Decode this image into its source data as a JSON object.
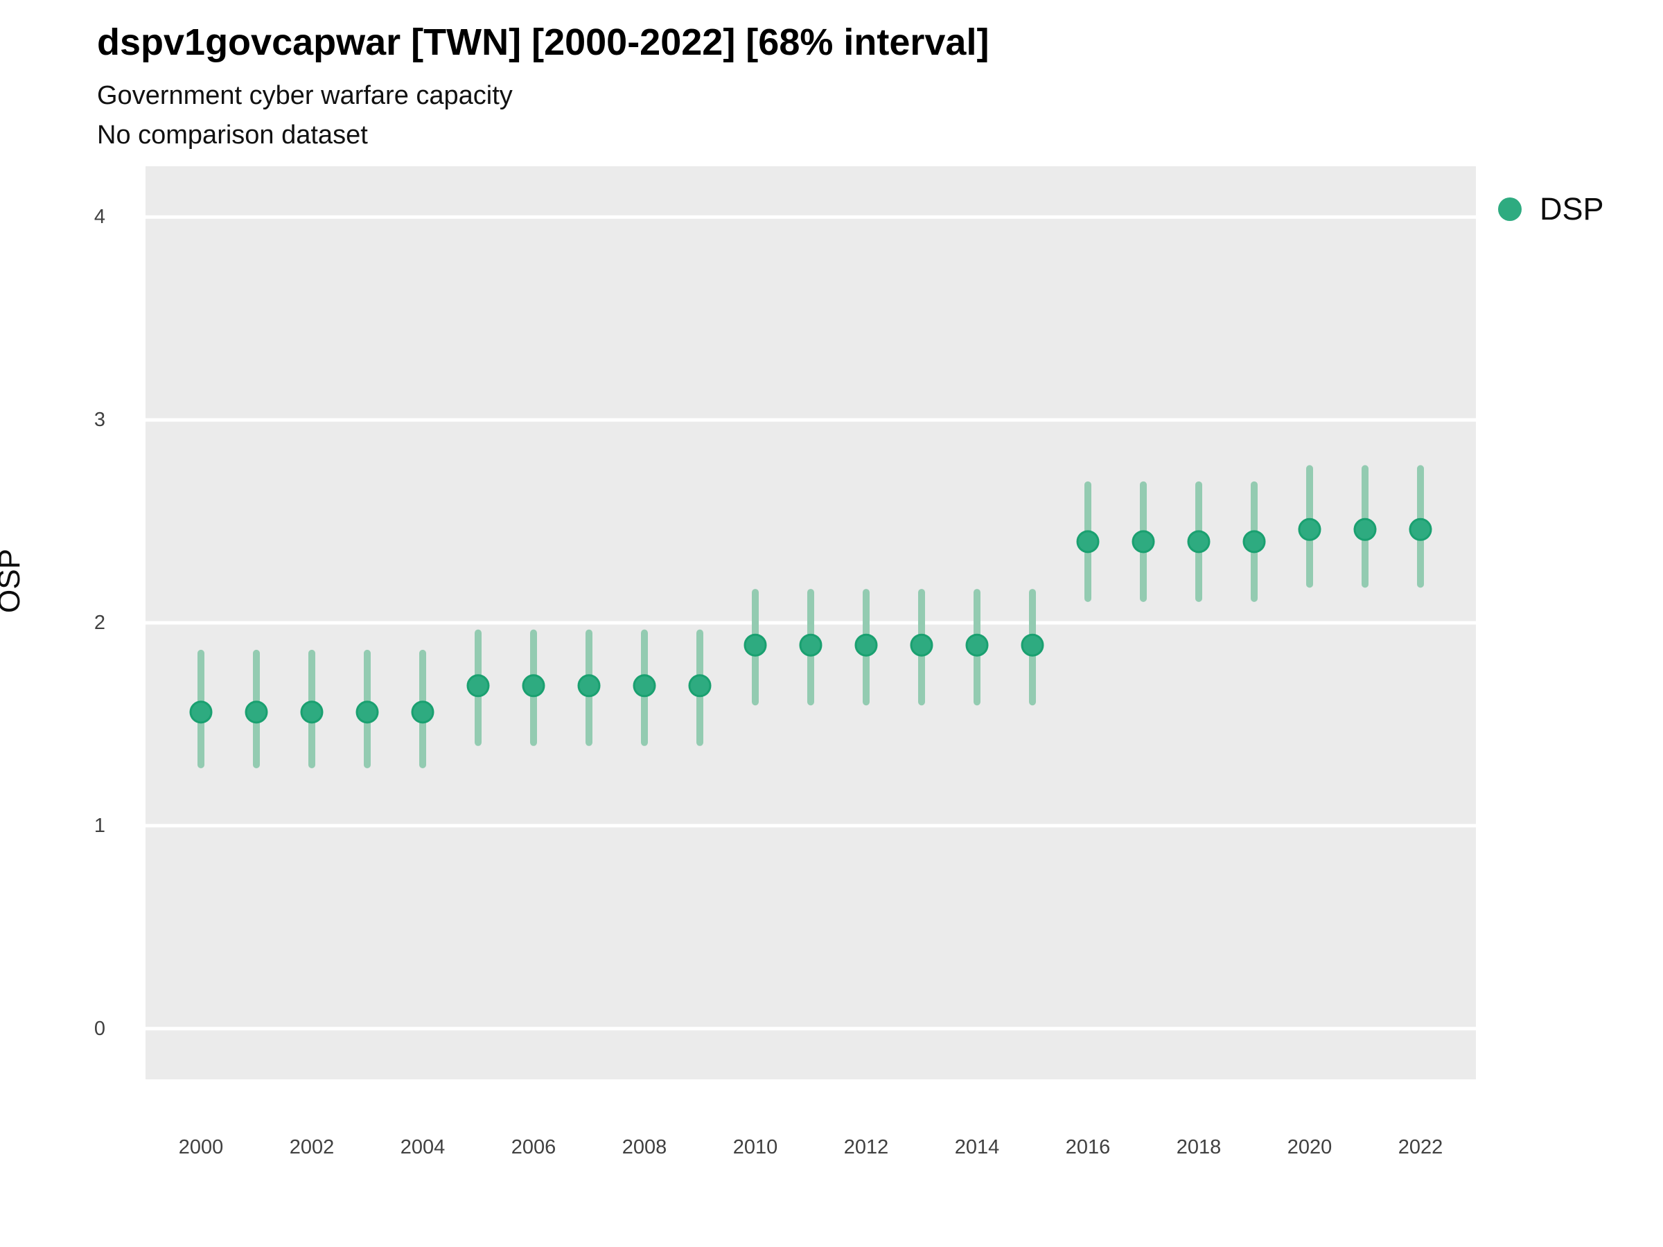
{
  "header": {
    "title": "dspv1govcapwar [TWN] [2000-2022] [68% interval]",
    "subtitle": "Government cyber warfare capacity",
    "comparison_note": "No comparison dataset"
  },
  "legend": {
    "position": "right-top",
    "items": [
      {
        "label": "DSP",
        "marker": "circle",
        "color": "#2eab80"
      }
    ]
  },
  "colors": {
    "panel_bg": "#ebebeb",
    "gridline": "#ffffff",
    "point_fill": "#2eab80",
    "point_stroke": "#1aa070",
    "interval_bar": "#93cbb1",
    "title_text": "#000000",
    "tick_text": "#404040"
  },
  "chart_data": {
    "type": "scatter",
    "title": "dspv1govcapwar [TWN] [2000-2022] [68% interval]",
    "subtitle": "Government cyber warfare capacity",
    "note": "No comparison dataset",
    "interval": "68%",
    "country": "TWN",
    "variable": "Government cyber warfare capacity",
    "xlabel": "",
    "ylabel": "OSP",
    "xlim": [
      1999,
      2023
    ],
    "ylim": [
      -0.25,
      4.25
    ],
    "yticks": [
      0,
      1,
      2,
      3,
      4
    ],
    "xticks": [
      2000,
      2002,
      2004,
      2006,
      2008,
      2010,
      2012,
      2014,
      2016,
      2018,
      2020,
      2022
    ],
    "grid": "horizontal white major gridlines on grey panel",
    "legend_position": "right",
    "series": [
      {
        "name": "DSP",
        "x": [
          2000,
          2001,
          2002,
          2003,
          2004,
          2005,
          2006,
          2007,
          2008,
          2009,
          2010,
          2011,
          2012,
          2013,
          2014,
          2015,
          2016,
          2017,
          2018,
          2019,
          2020,
          2021,
          2022
        ],
        "estimate": [
          1.56,
          1.56,
          1.56,
          1.56,
          1.56,
          1.69,
          1.69,
          1.69,
          1.69,
          1.69,
          1.89,
          1.89,
          1.89,
          1.89,
          1.89,
          1.89,
          2.4,
          2.4,
          2.4,
          2.4,
          2.46,
          2.46,
          2.46
        ],
        "lower": [
          1.3,
          1.3,
          1.3,
          1.3,
          1.3,
          1.41,
          1.41,
          1.41,
          1.41,
          1.41,
          1.61,
          1.61,
          1.61,
          1.61,
          1.61,
          1.61,
          2.12,
          2.12,
          2.12,
          2.12,
          2.19,
          2.19,
          2.19
        ],
        "upper": [
          1.85,
          1.85,
          1.85,
          1.85,
          1.85,
          1.95,
          1.95,
          1.95,
          1.95,
          1.95,
          2.15,
          2.15,
          2.15,
          2.15,
          2.15,
          2.15,
          2.68,
          2.68,
          2.68,
          2.68,
          2.76,
          2.76,
          2.76
        ]
      }
    ]
  }
}
